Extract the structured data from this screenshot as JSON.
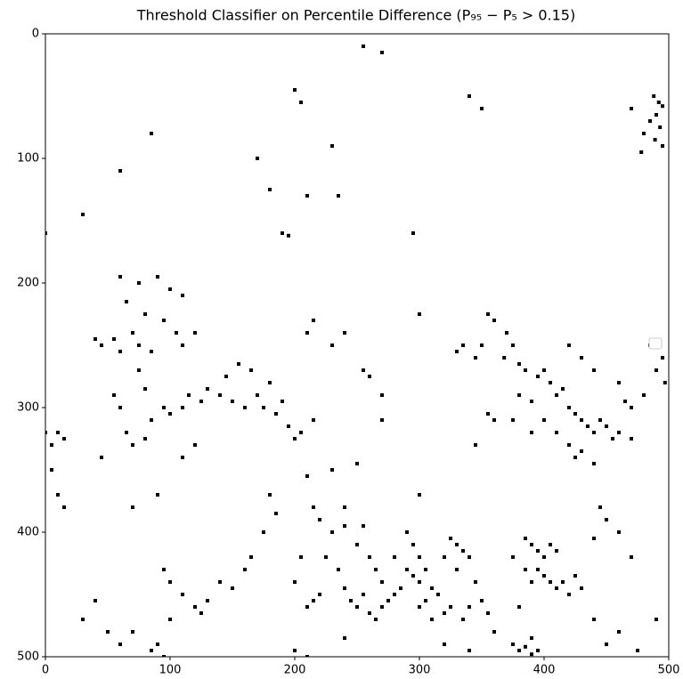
{
  "chart_data": {
    "type": "scatter",
    "title": "Threshold Classifier on Percentile Difference (P₉₅ − P₅ > 0.15)",
    "marker": "square",
    "color": "#000000",
    "xlim": [
      0,
      500
    ],
    "ylim": [
      500,
      0
    ],
    "xticks": [
      0,
      100,
      200,
      300,
      400,
      500
    ],
    "yticks": [
      0,
      100,
      200,
      300,
      400,
      500
    ],
    "grid": false,
    "x": [
      488,
      492,
      495,
      490,
      485,
      493,
      489,
      495,
      480,
      478,
      470,
      205,
      255,
      270,
      350,
      340,
      85,
      60,
      170,
      200,
      230,
      235,
      210,
      180,
      190,
      195,
      295,
      0,
      30,
      60,
      75,
      90,
      100,
      110,
      65,
      80,
      95,
      105,
      70,
      75,
      85,
      60,
      55,
      40,
      45,
      110,
      120,
      75,
      80,
      95,
      100,
      110,
      115,
      125,
      130,
      140,
      150,
      160,
      170,
      180,
      175,
      165,
      155,
      145,
      190,
      185,
      195,
      205,
      215,
      200,
      65,
      70,
      80,
      85,
      60,
      55,
      10,
      15,
      5,
      0,
      355,
      360,
      370,
      375,
      368,
      380,
      385,
      395,
      400,
      405,
      410,
      415,
      420,
      425,
      430,
      435,
      440,
      445,
      450,
      455,
      460,
      470,
      350,
      345,
      330,
      335,
      380,
      390,
      400,
      410,
      420,
      425,
      430,
      440,
      390,
      375,
      360,
      355,
      345,
      470,
      480,
      490,
      495,
      497,
      485,
      420,
      430,
      440,
      460,
      465,
      180,
      185,
      175,
      165,
      160,
      150,
      140,
      130,
      120,
      125,
      110,
      100,
      95,
      215,
      220,
      230,
      240,
      225,
      235,
      240,
      245,
      250,
      255,
      260,
      265,
      270,
      275,
      280,
      220,
      215,
      210,
      200,
      205,
      250,
      260,
      265,
      270,
      255,
      240,
      290,
      295,
      300,
      305,
      295,
      300,
      310,
      315,
      305,
      300,
      310,
      320,
      290,
      285,
      280,
      325,
      330,
      335,
      340,
      330,
      320,
      345,
      340,
      350,
      355,
      335,
      325,
      385,
      390,
      395,
      400,
      405,
      410,
      395,
      400,
      405,
      410,
      415,
      420,
      390,
      385,
      375,
      380,
      425,
      430,
      375,
      380,
      385,
      390,
      395,
      390,
      90,
      85,
      95,
      60,
      50,
      30,
      40,
      70,
      100,
      200,
      210,
      240,
      320,
      340,
      360,
      440,
      450,
      460,
      475,
      490,
      445,
      450,
      460,
      470,
      440,
      10,
      15,
      5,
      45,
      90,
      70,
      230,
      250,
      300,
      120,
      110,
      270,
      210,
      255,
      260,
      300,
      270,
      240,
      230,
      210,
      215
    ],
    "values": [
      50,
      55,
      58,
      65,
      70,
      75,
      85,
      90,
      80,
      95,
      60,
      55,
      10,
      15,
      60,
      50,
      80,
      110,
      100,
      45,
      90,
      130,
      130,
      125,
      160,
      162,
      160,
      160,
      145,
      195,
      200,
      195,
      205,
      210,
      215,
      225,
      230,
      240,
      240,
      250,
      255,
      255,
      245,
      245,
      250,
      250,
      240,
      270,
      285,
      300,
      305,
      300,
      290,
      295,
      285,
      290,
      295,
      300,
      290,
      280,
      300,
      270,
      265,
      275,
      295,
      305,
      315,
      320,
      310,
      325,
      320,
      330,
      325,
      310,
      300,
      290,
      320,
      325,
      330,
      320,
      225,
      230,
      240,
      250,
      260,
      265,
      270,
      275,
      270,
      280,
      290,
      285,
      300,
      305,
      310,
      315,
      320,
      310,
      315,
      325,
      320,
      325,
      250,
      260,
      255,
      250,
      290,
      295,
      310,
      320,
      330,
      340,
      335,
      345,
      320,
      310,
      310,
      305,
      330,
      300,
      290,
      270,
      260,
      280,
      250,
      250,
      260,
      270,
      280,
      295,
      370,
      385,
      400,
      420,
      430,
      445,
      440,
      455,
      460,
      465,
      450,
      440,
      430,
      380,
      390,
      400,
      395,
      420,
      430,
      445,
      455,
      460,
      450,
      465,
      470,
      460,
      455,
      450,
      450,
      455,
      460,
      440,
      420,
      410,
      420,
      430,
      440,
      395,
      380,
      400,
      410,
      420,
      430,
      435,
      440,
      445,
      450,
      455,
      460,
      470,
      465,
      430,
      445,
      420,
      405,
      410,
      415,
      420,
      430,
      420,
      440,
      460,
      455,
      465,
      470,
      460,
      405,
      410,
      415,
      420,
      410,
      415,
      430,
      435,
      440,
      445,
      440,
      450,
      440,
      430,
      420,
      460,
      435,
      445,
      490,
      495,
      492,
      498,
      495,
      485,
      490,
      495,
      500,
      490,
      480,
      470,
      455,
      480,
      470,
      495,
      500,
      485,
      490,
      495,
      480,
      470,
      490,
      480,
      495,
      470,
      380,
      390,
      400,
      420,
      405,
      370,
      380,
      350,
      340,
      370,
      380,
      350,
      345,
      370,
      330,
      340,
      310,
      355,
      270,
      275,
      225,
      290,
      240,
      250,
      240,
      230
    ]
  }
}
